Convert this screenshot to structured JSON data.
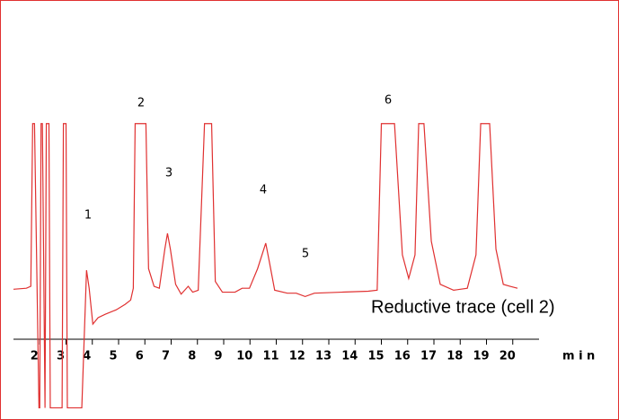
{
  "chart_data": {
    "type": "line",
    "annotation": "Reductive trace (cell 2)",
    "x_label": "m i n",
    "peak_labels": [
      "1",
      "2",
      "3",
      "4",
      "5",
      "6"
    ],
    "xlim": [
      1,
      21
    ],
    "xticks": [
      2,
      3,
      4,
      5,
      6,
      7,
      8,
      9,
      10,
      11,
      12,
      13,
      14,
      15,
      16,
      17,
      18,
      19,
      20
    ],
    "ylim": [
      0,
      100
    ],
    "series": [
      {
        "color": "#e03030",
        "x": [
          1.0,
          1.49,
          1.66,
          1.73,
          1.8,
          1.97,
          2.0,
          2.05,
          2.1,
          2.2,
          2.25,
          2.35,
          2.4,
          2.85,
          2.9,
          3.0,
          3.05,
          3.6,
          3.78,
          3.88,
          4.02,
          4.22,
          4.5,
          4.91,
          5.25,
          5.46,
          5.56,
          5.63,
          6.04,
          6.14,
          6.35,
          6.55,
          6.76,
          6.86,
          6.97,
          7.17,
          7.38,
          7.65,
          7.82,
          8.03,
          8.27,
          8.54,
          8.68,
          8.95,
          9.43,
          9.7,
          9.98,
          10.29,
          10.6,
          10.73,
          10.94,
          11.42,
          11.76,
          12.1,
          12.45,
          13.47,
          14.5,
          14.84,
          15.0,
          15.5,
          15.8,
          16.04,
          16.28,
          16.42,
          16.62,
          16.9,
          17.24,
          17.75,
          18.27,
          18.6,
          18.78,
          19.12,
          19.36,
          19.64,
          19.9,
          20.18
        ],
        "values": [
          25.5,
          26,
          27,
          110,
          110,
          -35,
          -35,
          110,
          110,
          -35,
          110,
          110,
          -35,
          -35,
          110,
          110,
          -35,
          -35,
          35.2,
          26,
          7.7,
          11,
          12.8,
          15,
          17.8,
          20,
          26,
          110,
          110,
          36,
          27,
          26,
          46,
          54,
          46,
          28,
          23,
          27,
          24,
          25,
          110,
          110,
          29.5,
          24,
          24,
          26,
          26,
          36,
          49,
          40,
          25,
          23.5,
          23.5,
          21.8,
          23.5,
          24,
          24.5,
          25,
          110,
          110,
          43,
          31,
          43,
          110,
          110,
          50,
          28,
          25,
          26,
          43,
          110,
          110,
          46,
          28,
          27,
          26
        ]
      }
    ]
  }
}
